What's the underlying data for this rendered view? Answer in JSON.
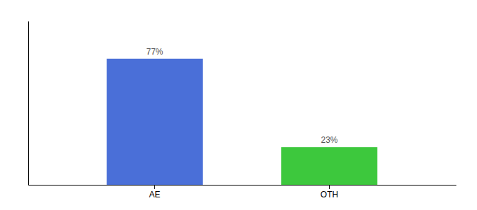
{
  "chart_data": {
    "type": "bar",
    "categories": [
      "AE",
      "OTH"
    ],
    "values": [
      77,
      23
    ],
    "value_labels": [
      "77%",
      "23%"
    ],
    "colors": [
      "#4a6fd8",
      "#3dc83d"
    ],
    "ylim": [
      0,
      100
    ],
    "data_labels": true,
    "tick_labels": "x"
  }
}
